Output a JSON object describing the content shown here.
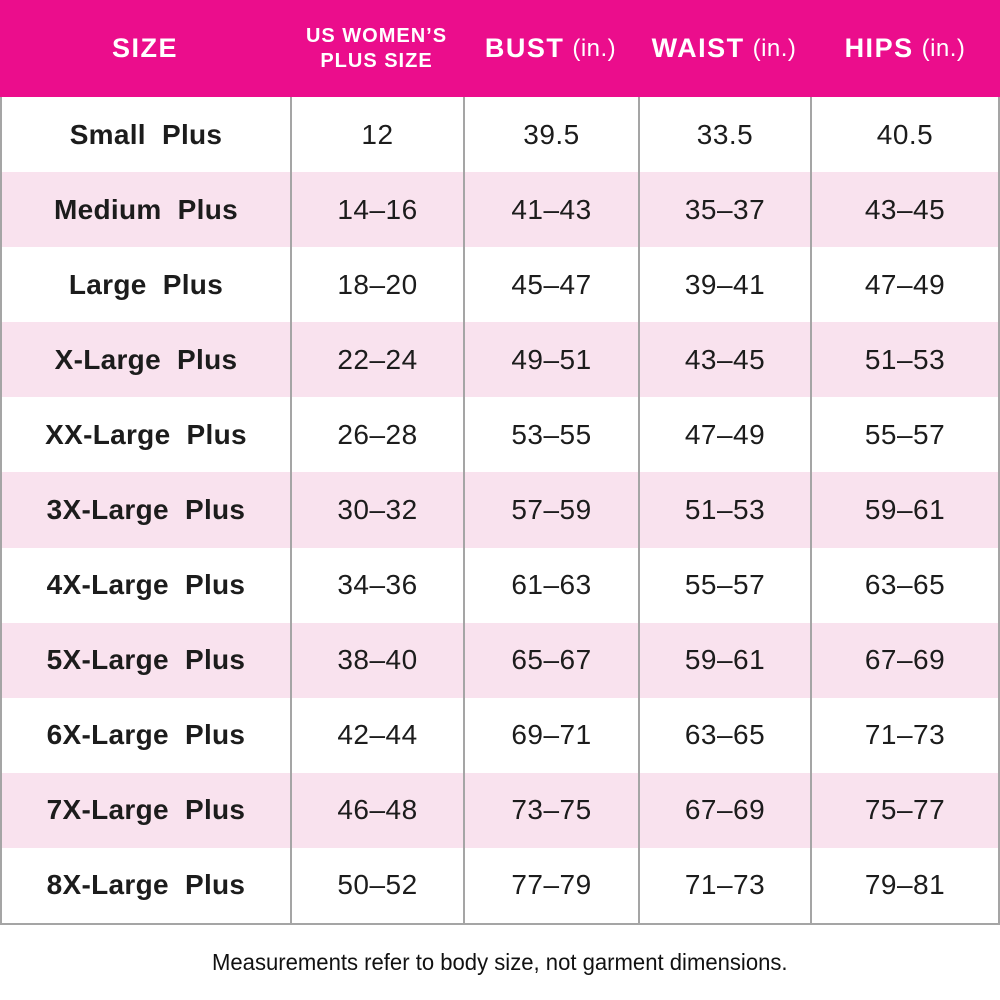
{
  "chart_data": {
    "type": "table",
    "columns": [
      {
        "title": "SIZE",
        "unit": ""
      },
      {
        "title": "US WOMEN’S PLUS SIZE",
        "title_line1": "US WOMEN’S",
        "title_line2": "PLUS SIZE",
        "unit": ""
      },
      {
        "title": "BUST",
        "unit": "(in.)"
      },
      {
        "title": "WAIST",
        "unit": "(in.)"
      },
      {
        "title": "HIPS",
        "unit": "(in.)"
      }
    ],
    "rows": [
      {
        "size": "Small Plus",
        "plus_size": "12",
        "bust": "39.5",
        "waist": "33.5",
        "hips": "40.5"
      },
      {
        "size": "Medium Plus",
        "plus_size": "14–16",
        "bust": "41–43",
        "waist": "35–37",
        "hips": "43–45"
      },
      {
        "size": "Large Plus",
        "plus_size": "18–20",
        "bust": "45–47",
        "waist": "39–41",
        "hips": "47–49"
      },
      {
        "size": "X-Large Plus",
        "plus_size": "22–24",
        "bust": "49–51",
        "waist": "43–45",
        "hips": "51–53"
      },
      {
        "size": "XX-Large Plus",
        "plus_size": "26–28",
        "bust": "53–55",
        "waist": "47–49",
        "hips": "55–57"
      },
      {
        "size": "3X-Large Plus",
        "plus_size": "30–32",
        "bust": "57–59",
        "waist": "51–53",
        "hips": "59–61"
      },
      {
        "size": "4X-Large Plus",
        "plus_size": "34–36",
        "bust": "61–63",
        "waist": "55–57",
        "hips": "63–65"
      },
      {
        "size": "5X-Large Plus",
        "plus_size": "38–40",
        "bust": "65–67",
        "waist": "59–61",
        "hips": "67–69"
      },
      {
        "size": "6X-Large Plus",
        "plus_size": "42–44",
        "bust": "69–71",
        "waist": "63–65",
        "hips": "71–73"
      },
      {
        "size": "7X-Large Plus",
        "plus_size": "46–48",
        "bust": "73–75",
        "waist": "67–69",
        "hips": "75–77"
      },
      {
        "size": "8X-Large Plus",
        "plus_size": "50–52",
        "bust": "77–79",
        "waist": "71–73",
        "hips": "79–81"
      }
    ],
    "footnote": "Measurements refer to body size, not garment dimensions.",
    "layout": "5 columns, zebra-striped rows, gridlines between columns only"
  },
  "colors": {
    "header_bg": "#EB0D8C",
    "header_text": "#FFFFFF",
    "row_bg": "#FFFFFF",
    "row_alt_bg": "#F9E2EE",
    "border": "#A5A5A5",
    "text": "#1C1C1C"
  }
}
